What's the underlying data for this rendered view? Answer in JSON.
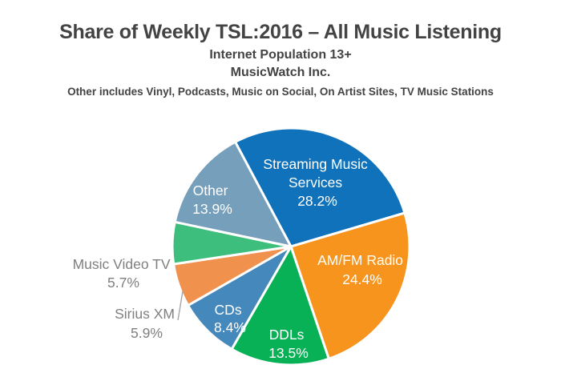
{
  "header": {
    "title": "Share of Weekly TSL:2016 – All Music Listening",
    "subtitle1": "Internet Population 13+",
    "subtitle2": "MusicWatch Inc.",
    "footnote": "Other includes Vinyl, Podcasts, Music on Social, On Artist Sites, TV Music Stations"
  },
  "colors": {
    "heading_text": "#434343",
    "inside_label_text": "#ffffff",
    "outside_label_text": "#7f7f7f",
    "leader_line": "#a6a6a6",
    "background": "#ffffff"
  },
  "chart_data": {
    "type": "pie",
    "title": "Share of Weekly TSL:2016 – All Music Listening",
    "subtitle": "Internet Population 13+",
    "source": "MusicWatch Inc.",
    "note": "Other includes Vinyl, Podcasts, Music on Social, On Artist Sites, TV Music Stations",
    "units": "percent share of weekly time spent listening",
    "start_angle_deg_clockwise_from_12": -28,
    "legend_position": "none",
    "labels_inside_slices": true,
    "slices": [
      {
        "label": "Streaming Music Services",
        "label_lines": [
          "Streaming Music",
          "Services"
        ],
        "value": 28.2,
        "pct_label": "28.2%",
        "color": "#1072BA",
        "label_placement": "inside"
      },
      {
        "label": "AM/FM Radio",
        "value": 24.4,
        "pct_label": "24.4%",
        "color": "#F7941E",
        "label_placement": "inside"
      },
      {
        "label": "DDLs",
        "value": 13.5,
        "pct_label": "13.5%",
        "color": "#09B156",
        "label_placement": "inside"
      },
      {
        "label": "CDs",
        "value": 8.4,
        "pct_label": "8.4%",
        "color": "#4588BB",
        "label_placement": "inside"
      },
      {
        "label": "Sirius XM",
        "value": 5.9,
        "pct_label": "5.9%",
        "color": "#F0914E",
        "label_placement": "outside"
      },
      {
        "label": "Music Video TV",
        "value": 5.7,
        "pct_label": "5.7%",
        "color": "#3EBE7D",
        "label_placement": "outside"
      },
      {
        "label": "Other",
        "value": 13.9,
        "pct_label": "13.9%",
        "color": "#759FBB",
        "label_placement": "inside"
      }
    ]
  }
}
